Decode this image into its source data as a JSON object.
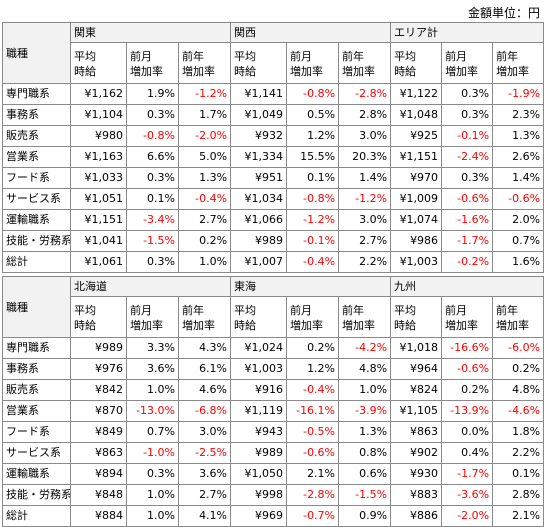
{
  "unit_label": "金額単位：円",
  "header": {
    "job_type": "職種",
    "col_avg": [
      "平均",
      "時給"
    ],
    "col_mom": [
      "前月",
      "増加率"
    ],
    "col_yoy": [
      "前年",
      "増加率"
    ]
  },
  "tables": [
    {
      "regions": [
        "関東",
        "関西",
        "エリア計"
      ],
      "rows": [
        {
          "job": "専門職系",
          "cells": [
            [
              "¥1,162",
              "1.9%",
              "-1.2%"
            ],
            [
              "¥1,141",
              "-0.8%",
              "-2.8%"
            ],
            [
              "¥1,122",
              "0.3%",
              "-1.9%"
            ]
          ]
        },
        {
          "job": "事務系",
          "cells": [
            [
              "¥1,104",
              "0.3%",
              "1.7%"
            ],
            [
              "¥1,049",
              "0.5%",
              "2.8%"
            ],
            [
              "¥1,048",
              "0.3%",
              "2.3%"
            ]
          ]
        },
        {
          "job": "販売系",
          "cells": [
            [
              "¥980",
              "-0.8%",
              "-2.0%"
            ],
            [
              "¥932",
              "1.2%",
              "3.0%"
            ],
            [
              "¥925",
              "-0.1%",
              "1.3%"
            ]
          ]
        },
        {
          "job": "営業系",
          "cells": [
            [
              "¥1,163",
              "6.6%",
              "5.0%"
            ],
            [
              "¥1,334",
              "15.5%",
              "20.3%"
            ],
            [
              "¥1,151",
              "-2.4%",
              "2.6%"
            ]
          ]
        },
        {
          "job": "フード系",
          "cells": [
            [
              "¥1,033",
              "0.3%",
              "1.3%"
            ],
            [
              "¥951",
              "0.1%",
              "1.4%"
            ],
            [
              "¥970",
              "0.3%",
              "1.4%"
            ]
          ]
        },
        {
          "job": "サービス系",
          "cells": [
            [
              "¥1,051",
              "0.1%",
              "-0.4%"
            ],
            [
              "¥1,034",
              "-0.8%",
              "-1.2%"
            ],
            [
              "¥1,009",
              "-0.6%",
              "-0.6%"
            ]
          ]
        },
        {
          "job": "運輸職系",
          "cells": [
            [
              "¥1,151",
              "-3.4%",
              "2.7%"
            ],
            [
              "¥1,066",
              "-1.2%",
              "3.0%"
            ],
            [
              "¥1,074",
              "-1.6%",
              "2.0%"
            ]
          ]
        },
        {
          "job": "技能・労務系",
          "cells": [
            [
              "¥1,041",
              "-1.5%",
              "0.2%"
            ],
            [
              "¥989",
              "-0.1%",
              "2.7%"
            ],
            [
              "¥986",
              "-1.7%",
              "0.7%"
            ]
          ]
        },
        {
          "job": "総計",
          "cells": [
            [
              "¥1,061",
              "0.3%",
              "1.0%"
            ],
            [
              "¥1,007",
              "-0.4%",
              "2.2%"
            ],
            [
              "¥1,003",
              "-0.2%",
              "1.6%"
            ]
          ]
        }
      ]
    },
    {
      "regions": [
        "北海道",
        "東海",
        "九州"
      ],
      "rows": [
        {
          "job": "専門職系",
          "cells": [
            [
              "¥989",
              "3.3%",
              "4.3%"
            ],
            [
              "¥1,024",
              "0.2%",
              "-4.2%"
            ],
            [
              "¥1,018",
              "-16.6%",
              "-6.0%"
            ]
          ]
        },
        {
          "job": "事務系",
          "cells": [
            [
              "¥976",
              "3.6%",
              "6.1%"
            ],
            [
              "¥1,003",
              "1.2%",
              "4.8%"
            ],
            [
              "¥964",
              "-0.6%",
              "0.2%"
            ]
          ]
        },
        {
          "job": "販売系",
          "cells": [
            [
              "¥842",
              "1.0%",
              "4.6%"
            ],
            [
              "¥916",
              "-0.4%",
              "1.0%"
            ],
            [
              "¥824",
              "0.2%",
              "4.8%"
            ]
          ]
        },
        {
          "job": "営業系",
          "cells": [
            [
              "¥870",
              "-13.0%",
              "-6.8%"
            ],
            [
              "¥1,119",
              "-16.1%",
              "-3.9%"
            ],
            [
              "¥1,105",
              "-13.9%",
              "-4.6%"
            ]
          ]
        },
        {
          "job": "フード系",
          "cells": [
            [
              "¥849",
              "0.7%",
              "3.0%"
            ],
            [
              "¥943",
              "-0.5%",
              "1.3%"
            ],
            [
              "¥863",
              "0.0%",
              "1.8%"
            ]
          ]
        },
        {
          "job": "サービス系",
          "cells": [
            [
              "¥863",
              "-1.0%",
              "-2.5%"
            ],
            [
              "¥989",
              "-0.6%",
              "0.8%"
            ],
            [
              "¥902",
              "0.4%",
              "2.2%"
            ]
          ]
        },
        {
          "job": "運輸職系",
          "cells": [
            [
              "¥894",
              "0.3%",
              "3.6%"
            ],
            [
              "¥1,050",
              "2.1%",
              "0.6%"
            ],
            [
              "¥930",
              "-1.7%",
              "0.1%"
            ]
          ]
        },
        {
          "job": "技能・労務系",
          "cells": [
            [
              "¥848",
              "1.0%",
              "2.7%"
            ],
            [
              "¥998",
              "-2.8%",
              "-1.5%"
            ],
            [
              "¥883",
              "-3.6%",
              "2.8%"
            ]
          ]
        },
        {
          "job": "総計",
          "cells": [
            [
              "¥884",
              "1.0%",
              "4.1%"
            ],
            [
              "¥969",
              "-0.7%",
              "0.9%"
            ],
            [
              "¥886",
              "-2.0%",
              "2.1%"
            ]
          ]
        }
      ]
    }
  ]
}
